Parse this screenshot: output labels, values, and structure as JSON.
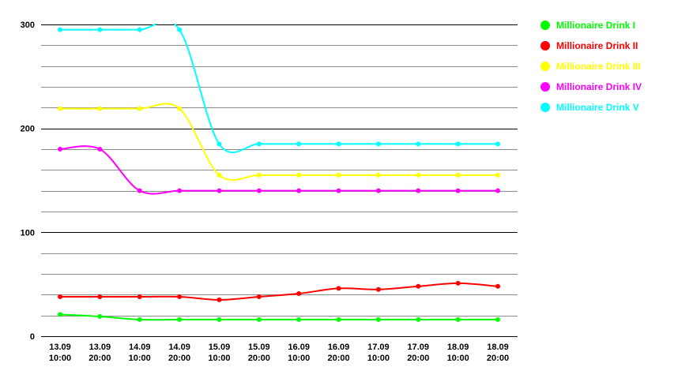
{
  "chart_data": {
    "type": "line",
    "title": "",
    "xlabel": "",
    "ylabel": "",
    "ylim": [
      0,
      300
    ],
    "y_ticks": [
      "0",
      "100",
      "200",
      "300"
    ],
    "y_minor_step": 20,
    "grid": true,
    "legend_position": "right",
    "smooth": true,
    "categories": [
      [
        "13.09",
        "10:00"
      ],
      [
        "13.09",
        "20:00"
      ],
      [
        "14.09",
        "10:00"
      ],
      [
        "14.09",
        "20:00"
      ],
      [
        "15.09",
        "10:00"
      ],
      [
        "15.09",
        "20:00"
      ],
      [
        "16.09",
        "10:00"
      ],
      [
        "16.09",
        "20:00"
      ],
      [
        "17.09",
        "10:00"
      ],
      [
        "17.09",
        "20:00"
      ],
      [
        "18.09",
        "10:00"
      ],
      [
        "18.09",
        "20:00"
      ]
    ],
    "series": [
      {
        "name": "Millionaire Drink I",
        "color": "#00ff00",
        "values": [
          21,
          19,
          16,
          16,
          16,
          16,
          16,
          16,
          16,
          16,
          16,
          16
        ]
      },
      {
        "name": "Millionaire Drink II",
        "color": "#ff0000",
        "values": [
          38,
          38,
          38,
          38,
          35,
          38,
          41,
          46,
          45,
          48,
          51,
          48
        ]
      },
      {
        "name": "Millionaire Drink III",
        "color": "#ffff00",
        "values": [
          219,
          219,
          219,
          219,
          155,
          155,
          155,
          155,
          155,
          155,
          155,
          155
        ]
      },
      {
        "name": "Millionaire Drink IV",
        "color": "#ff00ff",
        "values": [
          180,
          180,
          140,
          140,
          140,
          140,
          140,
          140,
          140,
          140,
          140,
          140
        ]
      },
      {
        "name": "Millionaire Drink V",
        "color": "#00ffff",
        "values": [
          295,
          295,
          295,
          295,
          185,
          185,
          185,
          185,
          185,
          185,
          185,
          185
        ]
      }
    ]
  }
}
